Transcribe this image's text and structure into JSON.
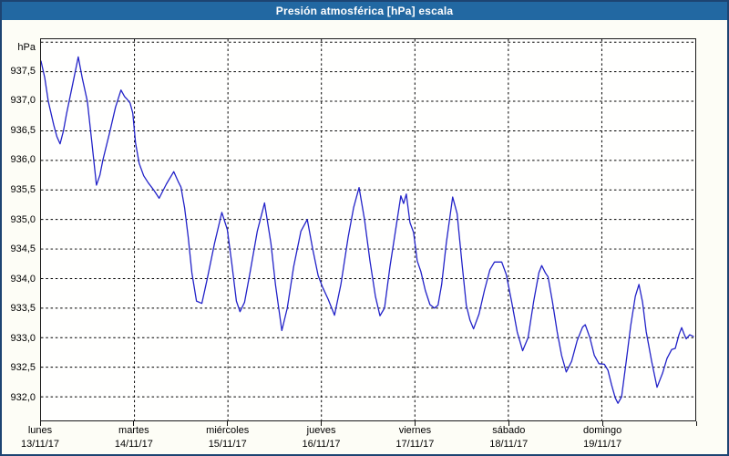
{
  "window": {
    "title": "Presión atmosférica [hPa] escala"
  },
  "colors": {
    "header_bg": "#2268a2",
    "frame_border": "#1d4472",
    "content_bg": "#fdfdf6",
    "plot_bg": "#fffffe",
    "grid": "#000000",
    "line": "#2222c8",
    "title_text": "#ffffff",
    "label_text": "#000000"
  },
  "chart_data": {
    "type": "line",
    "title": "Presión atmosférica [hPa] escala",
    "xlabel": "",
    "ylabel": "hPa",
    "legend": "none",
    "grid": "dashed",
    "ylim": [
      931.6,
      938.05
    ],
    "xlim_days": [
      0,
      7
    ],
    "y_gridline_values": [
      938.0,
      937.5,
      937.0,
      936.5,
      936.0,
      935.5,
      935.0,
      934.5,
      934.0,
      933.5,
      933.0,
      932.5,
      932.0
    ],
    "y_ticks": [
      {
        "value": 937.5,
        "label": "937,5"
      },
      {
        "value": 937.0,
        "label": "937,0"
      },
      {
        "value": 936.5,
        "label": "936,5"
      },
      {
        "value": 936.0,
        "label": "936,0"
      },
      {
        "value": 935.5,
        "label": "935,5"
      },
      {
        "value": 935.0,
        "label": "935,0"
      },
      {
        "value": 934.5,
        "label": "934,5"
      },
      {
        "value": 934.0,
        "label": "934,0"
      },
      {
        "value": 933.5,
        "label": "933,5"
      },
      {
        "value": 933.0,
        "label": "933,0"
      },
      {
        "value": 932.5,
        "label": "932,5"
      },
      {
        "value": 932.0,
        "label": "932,0"
      }
    ],
    "x_ticks": [
      {
        "t": 0,
        "day": "lunes",
        "date": "13/11/17"
      },
      {
        "t": 1,
        "day": "martes",
        "date": "14/11/17"
      },
      {
        "t": 2,
        "day": "miércoles",
        "date": "15/11/17"
      },
      {
        "t": 3,
        "day": "jueves",
        "date": "16/11/17"
      },
      {
        "t": 4,
        "day": "viernes",
        "date": "17/11/17"
      },
      {
        "t": 5,
        "day": "sábado",
        "date": "18/11/17"
      },
      {
        "t": 6,
        "day": "domingo",
        "date": "19/11/17"
      },
      {
        "t": 7,
        "day": "",
        "date": ""
      }
    ],
    "series": [
      {
        "name": "Presión atmosférica [hPa]",
        "color": "#2222c8",
        "points": [
          [
            0.0,
            937.68
          ],
          [
            0.04,
            937.4
          ],
          [
            0.078,
            937.0
          ],
          [
            0.136,
            936.6
          ],
          [
            0.17,
            936.4
          ],
          [
            0.204,
            936.28
          ],
          [
            0.24,
            936.5
          ],
          [
            0.272,
            936.78
          ],
          [
            0.34,
            937.3
          ],
          [
            0.399,
            937.75
          ],
          [
            0.44,
            937.4
          ],
          [
            0.496,
            937.0
          ],
          [
            0.544,
            936.3
          ],
          [
            0.593,
            935.58
          ],
          [
            0.63,
            935.75
          ],
          [
            0.661,
            936.0
          ],
          [
            0.739,
            936.5
          ],
          [
            0.797,
            936.9
          ],
          [
            0.856,
            937.19
          ],
          [
            0.894,
            937.08
          ],
          [
            0.924,
            937.03
          ],
          [
            0.953,
            936.97
          ],
          [
            0.982,
            936.8
          ],
          [
            1.011,
            936.3
          ],
          [
            1.05,
            935.95
          ],
          [
            1.099,
            935.74
          ],
          [
            1.147,
            935.62
          ],
          [
            1.206,
            935.5
          ],
          [
            1.264,
            935.36
          ],
          [
            1.342,
            935.6
          ],
          [
            1.42,
            935.81
          ],
          [
            1.468,
            935.64
          ],
          [
            1.497,
            935.55
          ],
          [
            1.536,
            935.2
          ],
          [
            1.575,
            934.7
          ],
          [
            1.614,
            934.1
          ],
          [
            1.663,
            933.62
          ],
          [
            1.721,
            933.58
          ],
          [
            1.779,
            934.0
          ],
          [
            1.857,
            934.6
          ],
          [
            1.935,
            935.12
          ],
          [
            1.993,
            934.83
          ],
          [
            2.042,
            934.25
          ],
          [
            2.09,
            933.62
          ],
          [
            2.129,
            933.44
          ],
          [
            2.178,
            933.6
          ],
          [
            2.236,
            934.1
          ],
          [
            2.314,
            934.8
          ],
          [
            2.392,
            935.28
          ],
          [
            2.46,
            934.6
          ],
          [
            2.508,
            933.9
          ],
          [
            2.576,
            933.12
          ],
          [
            2.635,
            933.5
          ],
          [
            2.703,
            934.2
          ],
          [
            2.781,
            934.8
          ],
          [
            2.849,
            935.0
          ],
          [
            2.907,
            934.5
          ],
          [
            2.965,
            934.05
          ],
          [
            3.014,
            933.85
          ],
          [
            3.072,
            933.65
          ],
          [
            3.14,
            933.38
          ],
          [
            3.208,
            933.9
          ],
          [
            3.286,
            934.7
          ],
          [
            3.344,
            935.2
          ],
          [
            3.403,
            935.54
          ],
          [
            3.461,
            935.0
          ],
          [
            3.519,
            934.3
          ],
          [
            3.578,
            933.7
          ],
          [
            3.626,
            933.37
          ],
          [
            3.675,
            933.5
          ],
          [
            3.733,
            934.2
          ],
          [
            3.801,
            934.9
          ],
          [
            3.85,
            935.4
          ],
          [
            3.879,
            935.27
          ],
          [
            3.908,
            935.43
          ],
          [
            3.947,
            934.95
          ],
          [
            3.986,
            934.78
          ],
          [
            4.025,
            934.3
          ],
          [
            4.064,
            934.12
          ],
          [
            4.112,
            933.8
          ],
          [
            4.161,
            933.56
          ],
          [
            4.21,
            933.5
          ],
          [
            4.248,
            933.55
          ],
          [
            4.287,
            933.9
          ],
          [
            4.336,
            934.6
          ],
          [
            4.404,
            935.38
          ],
          [
            4.452,
            935.1
          ],
          [
            4.501,
            934.3
          ],
          [
            4.55,
            933.55
          ],
          [
            4.589,
            933.3
          ],
          [
            4.628,
            933.15
          ],
          [
            4.686,
            933.4
          ],
          [
            4.744,
            933.8
          ],
          [
            4.803,
            934.15
          ],
          [
            4.851,
            934.28
          ],
          [
            4.929,
            934.28
          ],
          [
            4.978,
            934.07
          ],
          [
            5.036,
            933.6
          ],
          [
            5.094,
            933.1
          ],
          [
            5.153,
            932.78
          ],
          [
            5.211,
            933.0
          ],
          [
            5.269,
            933.6
          ],
          [
            5.327,
            934.1
          ],
          [
            5.357,
            934.22
          ],
          [
            5.395,
            934.1
          ],
          [
            5.425,
            934.03
          ],
          [
            5.473,
            933.6
          ],
          [
            5.522,
            933.1
          ],
          [
            5.57,
            932.7
          ],
          [
            5.619,
            932.42
          ],
          [
            5.677,
            932.6
          ],
          [
            5.736,
            932.95
          ],
          [
            5.794,
            933.18
          ],
          [
            5.823,
            933.22
          ],
          [
            5.872,
            933.0
          ],
          [
            5.92,
            932.7
          ],
          [
            5.969,
            932.56
          ],
          [
            6.027,
            932.55
          ],
          [
            6.066,
            932.45
          ],
          [
            6.105,
            932.2
          ],
          [
            6.144,
            931.98
          ],
          [
            6.173,
            931.89
          ],
          [
            6.212,
            932.0
          ],
          [
            6.261,
            932.6
          ],
          [
            6.309,
            933.2
          ],
          [
            6.358,
            933.7
          ],
          [
            6.397,
            933.9
          ],
          [
            6.436,
            933.6
          ],
          [
            6.475,
            933.1
          ],
          [
            6.533,
            932.6
          ],
          [
            6.591,
            932.16
          ],
          [
            6.65,
            932.4
          ],
          [
            6.698,
            932.65
          ],
          [
            6.747,
            932.8
          ],
          [
            6.786,
            932.82
          ],
          [
            6.825,
            933.05
          ],
          [
            6.854,
            933.17
          ],
          [
            6.883,
            933.05
          ],
          [
            6.903,
            932.98
          ],
          [
            6.941,
            933.05
          ],
          [
            6.98,
            933.02
          ]
        ]
      }
    ]
  }
}
